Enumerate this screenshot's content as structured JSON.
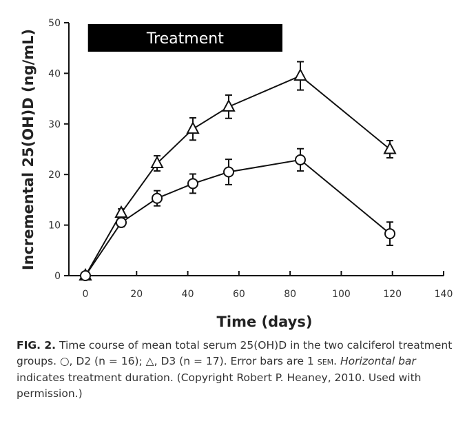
{
  "chart_data": {
    "type": "line",
    "title": "",
    "xlabel": "Time (days)",
    "ylabel": "Incremental 25(OH)D (ng/mL)",
    "xlim": [
      0,
      140
    ],
    "ylim": [
      0,
      50
    ],
    "xticks": [
      0,
      20,
      40,
      60,
      80,
      100,
      120,
      140
    ],
    "yticks": [
      0,
      10,
      20,
      30,
      40,
      50
    ],
    "grid": false,
    "annotation": {
      "label": "Treatment",
      "from_day": 1,
      "to_day": 77,
      "color": "#000000"
    },
    "series": [
      {
        "name": "D3 (triangle)",
        "marker": "triangle",
        "x": [
          0,
          14,
          28,
          42,
          56,
          84,
          119
        ],
        "y": [
          0,
          12.4,
          22.2,
          29,
          33.4,
          39.5,
          25
        ],
        "err": [
          0,
          0.8,
          1.5,
          2.2,
          2.3,
          2.8,
          1.7
        ]
      },
      {
        "name": "D2 (circle)",
        "marker": "circle",
        "x": [
          0,
          14,
          28,
          42,
          56,
          84,
          119
        ],
        "y": [
          0,
          10.5,
          15.3,
          18.2,
          20.5,
          22.9,
          8.3
        ],
        "err": [
          0,
          0.8,
          1.5,
          1.9,
          2.5,
          2.2,
          2.3
        ]
      }
    ]
  },
  "caption": {
    "fig": "FIG. 2.",
    "t1": " Time course of mean total serum 25(OH)D in the two calciferol treatment groups. ○, D2 (n = 16); △, D3 (n = 17). Error bars are 1 ",
    "sem": "SEM",
    "t2": ". ",
    "italic": "Horizontal bar",
    "t3": " indicates treatment duration. (Copyright Robert P. Heaney, 2010. Used with permission.)"
  }
}
